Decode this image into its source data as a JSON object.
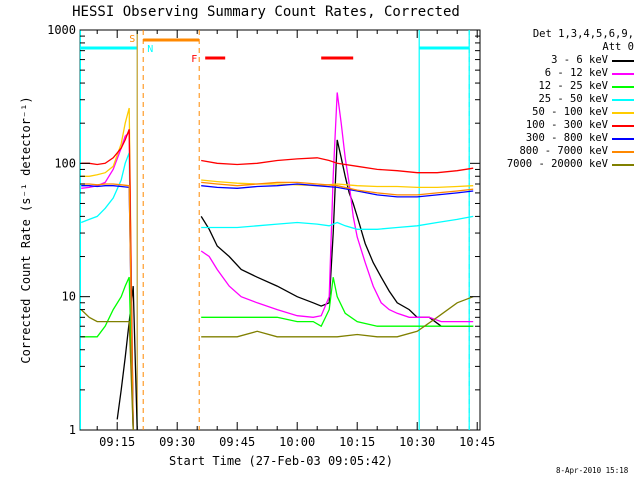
{
  "chart_data": {
    "type": "line",
    "title": "HESSI Observing Summary Count Rates, Corrected",
    "xlabel": "Start Time (27-Feb-03 09:05:42)",
    "ylabel": "Corrected Count Rate (s⁻¹ detector⁻¹)",
    "yscale": "log",
    "ylim": [
      1,
      1000
    ],
    "xlim_minutes_after_0900": [
      5.7,
      105.7
    ],
    "xticks": [
      {
        "label": "09:15",
        "minute": 15
      },
      {
        "label": "09:30",
        "minute": 30
      },
      {
        "label": "09:45",
        "minute": 45
      },
      {
        "label": "10:00",
        "minute": 60
      },
      {
        "label": "10:15",
        "minute": 75
      },
      {
        "label": "10:30",
        "minute": 90
      },
      {
        "label": "10:45",
        "minute": 105
      }
    ],
    "yticks": [
      {
        "label": "1",
        "value": 1
      },
      {
        "label": "10",
        "value": 10
      },
      {
        "label": "100",
        "value": 100
      },
      {
        "label": "1000",
        "value": 1000
      }
    ],
    "legend_title": "Det 1,3,4,5,6,9,",
    "legend_subtitle": "Att 0",
    "legend_placement": "right",
    "series": [
      {
        "name": "3 - 6 keV",
        "color": "#000000",
        "points": [
          [
            15,
            1.2
          ],
          [
            16,
            2.0
          ],
          [
            17,
            3.5
          ],
          [
            19,
            12
          ],
          [
            20,
            1
          ],
          [
            35,
            null
          ],
          [
            36,
            40
          ],
          [
            38,
            32
          ],
          [
            40,
            24
          ],
          [
            43,
            20
          ],
          [
            46,
            16
          ],
          [
            50,
            14
          ],
          [
            55,
            12
          ],
          [
            60,
            10
          ],
          [
            64,
            9
          ],
          [
            66,
            8.5
          ],
          [
            68,
            9
          ],
          [
            69,
            30
          ],
          [
            70,
            150
          ],
          [
            71,
            110
          ],
          [
            72,
            80
          ],
          [
            73,
            60
          ],
          [
            74,
            50
          ],
          [
            75,
            40
          ],
          [
            77,
            25
          ],
          [
            79,
            18
          ],
          [
            81,
            14
          ],
          [
            83,
            11
          ],
          [
            85,
            9
          ],
          [
            88,
            8
          ],
          [
            90,
            7
          ],
          [
            93,
            7
          ],
          [
            96,
            6
          ],
          [
            99,
            6
          ],
          [
            102,
            6
          ],
          [
            104,
            6
          ]
        ]
      },
      {
        "name": "6 - 12 keV",
        "color": "#ff00ff",
        "points": [
          [
            6,
            65
          ],
          [
            8,
            66
          ],
          [
            10,
            68
          ],
          [
            12,
            72
          ],
          [
            14,
            90
          ],
          [
            16,
            130
          ],
          [
            17,
            160
          ],
          [
            18,
            170
          ],
          [
            19,
            1
          ],
          [
            35,
            null
          ],
          [
            36,
            22
          ],
          [
            38,
            20
          ],
          [
            40,
            16
          ],
          [
            43,
            12
          ],
          [
            46,
            10
          ],
          [
            50,
            9
          ],
          [
            55,
            8
          ],
          [
            60,
            7.2
          ],
          [
            64,
            7
          ],
          [
            66,
            7.2
          ],
          [
            68,
            10
          ],
          [
            69,
            80
          ],
          [
            70,
            340
          ],
          [
            71,
            200
          ],
          [
            72,
            110
          ],
          [
            73,
            70
          ],
          [
            74,
            40
          ],
          [
            75,
            28
          ],
          [
            77,
            18
          ],
          [
            79,
            12
          ],
          [
            81,
            9
          ],
          [
            83,
            8
          ],
          [
            85,
            7.5
          ],
          [
            88,
            7
          ],
          [
            90,
            7
          ],
          [
            93,
            7
          ],
          [
            96,
            6.5
          ],
          [
            99,
            6.5
          ],
          [
            102,
            6.5
          ],
          [
            104,
            6.5
          ]
        ]
      },
      {
        "name": "12 - 25 keV",
        "color": "#00ff00",
        "points": [
          [
            6,
            5
          ],
          [
            8,
            5
          ],
          [
            10,
            5
          ],
          [
            12,
            6
          ],
          [
            14,
            8
          ],
          [
            16,
            10
          ],
          [
            17,
            12
          ],
          [
            18,
            14
          ],
          [
            19,
            1
          ],
          [
            35,
            null
          ],
          [
            36,
            7
          ],
          [
            40,
            7
          ],
          [
            45,
            7
          ],
          [
            50,
            7
          ],
          [
            55,
            7
          ],
          [
            60,
            6.5
          ],
          [
            64,
            6.5
          ],
          [
            66,
            6
          ],
          [
            68,
            8
          ],
          [
            69,
            14
          ],
          [
            70,
            10
          ],
          [
            72,
            7.5
          ],
          [
            75,
            6.5
          ],
          [
            80,
            6
          ],
          [
            85,
            6
          ],
          [
            90,
            6
          ],
          [
            95,
            6
          ],
          [
            100,
            6
          ],
          [
            104,
            6
          ]
        ]
      },
      {
        "name": "25 - 50 keV",
        "color": "#00ffff",
        "points": [
          [
            6,
            36
          ],
          [
            8,
            38
          ],
          [
            10,
            40
          ],
          [
            12,
            46
          ],
          [
            14,
            55
          ],
          [
            16,
            75
          ],
          [
            17,
            100
          ],
          [
            18,
            120
          ],
          [
            19,
            1
          ],
          [
            35,
            null
          ],
          [
            36,
            33
          ],
          [
            40,
            33
          ],
          [
            45,
            33
          ],
          [
            50,
            34
          ],
          [
            55,
            35
          ],
          [
            60,
            36
          ],
          [
            65,
            35
          ],
          [
            68,
            34
          ],
          [
            70,
            36
          ],
          [
            72,
            34
          ],
          [
            75,
            32
          ],
          [
            80,
            32
          ],
          [
            85,
            33
          ],
          [
            90,
            34
          ],
          [
            95,
            36
          ],
          [
            100,
            38
          ],
          [
            104,
            40
          ]
        ]
      },
      {
        "name": "50 - 100 keV",
        "color": "#ffcc00",
        "points": [
          [
            6,
            80
          ],
          [
            8,
            80
          ],
          [
            10,
            82
          ],
          [
            12,
            85
          ],
          [
            14,
            95
          ],
          [
            16,
            140
          ],
          [
            17,
            200
          ],
          [
            18,
            260
          ],
          [
            19,
            1
          ],
          [
            35,
            null
          ],
          [
            36,
            75
          ],
          [
            40,
            73
          ],
          [
            45,
            71
          ],
          [
            50,
            70
          ],
          [
            55,
            70
          ],
          [
            60,
            69
          ],
          [
            65,
            68
          ],
          [
            70,
            70
          ],
          [
            75,
            68
          ],
          [
            80,
            67
          ],
          [
            85,
            67
          ],
          [
            90,
            66
          ],
          [
            95,
            66
          ],
          [
            100,
            67
          ],
          [
            104,
            68
          ]
        ]
      },
      {
        "name": "100 - 300 keV",
        "color": "#ff0000",
        "points": [
          [
            6,
            100
          ],
          [
            8,
            100
          ],
          [
            10,
            98
          ],
          [
            12,
            100
          ],
          [
            14,
            110
          ],
          [
            16,
            130
          ],
          [
            17,
            150
          ],
          [
            18,
            180
          ],
          [
            19,
            1
          ],
          [
            35,
            null
          ],
          [
            36,
            105
          ],
          [
            40,
            100
          ],
          [
            45,
            98
          ],
          [
            50,
            100
          ],
          [
            55,
            105
          ],
          [
            60,
            108
          ],
          [
            65,
            110
          ],
          [
            68,
            105
          ],
          [
            70,
            100
          ],
          [
            75,
            95
          ],
          [
            80,
            90
          ],
          [
            85,
            88
          ],
          [
            90,
            85
          ],
          [
            95,
            85
          ],
          [
            100,
            88
          ],
          [
            104,
            92
          ]
        ]
      },
      {
        "name": "300 - 800 keV",
        "color": "#0000ff",
        "points": [
          [
            6,
            68
          ],
          [
            8,
            68
          ],
          [
            10,
            67
          ],
          [
            12,
            68
          ],
          [
            14,
            68
          ],
          [
            16,
            67
          ],
          [
            18,
            66
          ],
          [
            19,
            1
          ],
          [
            35,
            null
          ],
          [
            36,
            68
          ],
          [
            40,
            66
          ],
          [
            45,
            65
          ],
          [
            50,
            67
          ],
          [
            55,
            68
          ],
          [
            60,
            70
          ],
          [
            65,
            68
          ],
          [
            70,
            66
          ],
          [
            75,
            62
          ],
          [
            80,
            58
          ],
          [
            85,
            56
          ],
          [
            90,
            56
          ],
          [
            95,
            58
          ],
          [
            100,
            60
          ],
          [
            104,
            62
          ]
        ]
      },
      {
        "name": "800 - 7000 keV",
        "color": "#ff8800",
        "points": [
          [
            6,
            70
          ],
          [
            8,
            70
          ],
          [
            10,
            69
          ],
          [
            12,
            70
          ],
          [
            14,
            70
          ],
          [
            16,
            69
          ],
          [
            18,
            68
          ],
          [
            19,
            1
          ],
          [
            35,
            null
          ],
          [
            36,
            72
          ],
          [
            40,
            70
          ],
          [
            45,
            68
          ],
          [
            50,
            70
          ],
          [
            55,
            72
          ],
          [
            60,
            72
          ],
          [
            65,
            70
          ],
          [
            70,
            68
          ],
          [
            75,
            63
          ],
          [
            80,
            60
          ],
          [
            85,
            58
          ],
          [
            90,
            58
          ],
          [
            95,
            60
          ],
          [
            100,
            62
          ],
          [
            104,
            64
          ]
        ]
      },
      {
        "name": "7000 - 20000 keV",
        "color": "#808000",
        "points": [
          [
            6,
            8
          ],
          [
            8,
            7
          ],
          [
            10,
            6.5
          ],
          [
            12,
            6.5
          ],
          [
            14,
            6.5
          ],
          [
            16,
            6.5
          ],
          [
            18,
            6.5
          ],
          [
            19,
            1
          ],
          [
            35,
            null
          ],
          [
            36,
            5
          ],
          [
            40,
            5
          ],
          [
            45,
            5
          ],
          [
            50,
            5.5
          ],
          [
            55,
            5
          ],
          [
            60,
            5
          ],
          [
            65,
            5
          ],
          [
            70,
            5
          ],
          [
            75,
            5.2
          ],
          [
            80,
            5
          ],
          [
            85,
            5
          ],
          [
            90,
            5.5
          ],
          [
            95,
            7
          ],
          [
            100,
            9
          ],
          [
            104,
            10
          ]
        ]
      }
    ],
    "markers": {
      "saa": {
        "label": "S",
        "start": 20,
        "end": 21.5,
        "color": "#ff8800"
      },
      "night": {
        "label": "N",
        "start": 21.5,
        "end": 35.5,
        "color": "#ff8800"
      },
      "flare": {
        "label": "F",
        "start": 35.5,
        "color": "#ff8800"
      },
      "flare_bars": [
        {
          "start": 37,
          "end": 42
        },
        {
          "start": 66,
          "end": 74
        }
      ],
      "flare_bar_color": "#ff0000",
      "daylight_bars": [
        {
          "start": 5.7,
          "end": 20
        },
        {
          "start": 90.5,
          "end": 103
        }
      ],
      "daylight_color": "#00ffff",
      "cyan_verticals": [
        5.8,
        20,
        90.5,
        103
      ],
      "dashed_verticals": [
        {
          "at": 21.5,
          "color": "#ff8800"
        },
        {
          "at": 35.5,
          "color": "#ff8800"
        },
        {
          "at": 103,
          "color": "#00ffff"
        }
      ]
    }
  },
  "footer": {
    "stamp": "8-Apr-2010 15:18"
  }
}
